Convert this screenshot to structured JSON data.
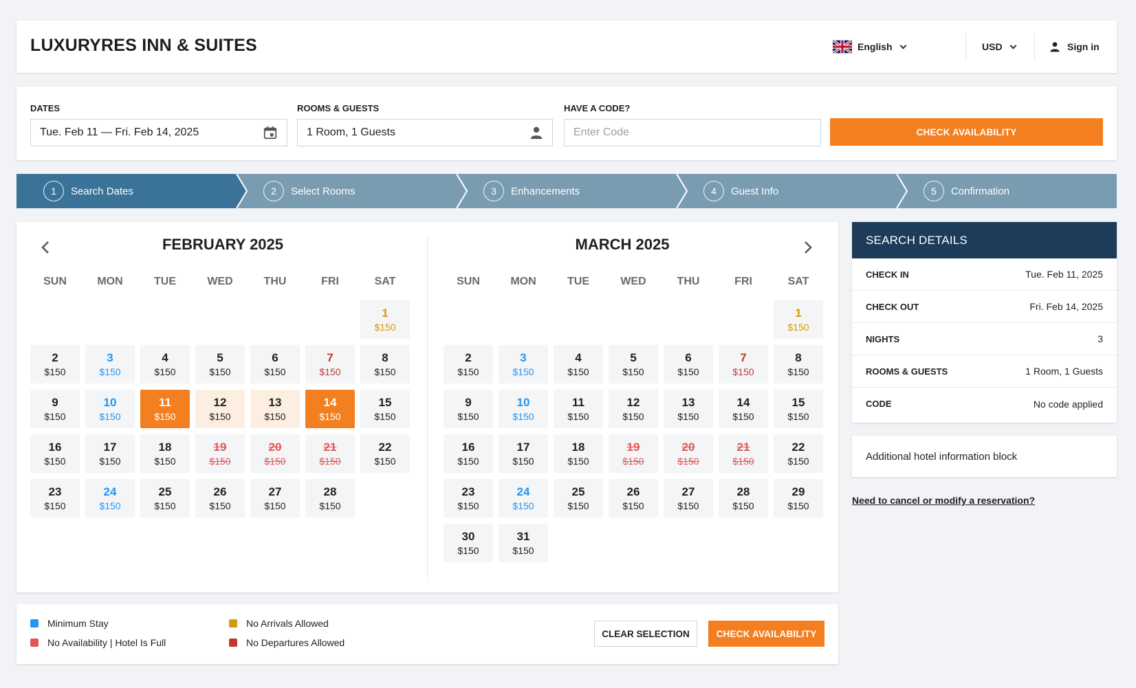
{
  "header": {
    "brand": "LUXURYRES INN & SUITES",
    "language": "English",
    "currency": "USD",
    "sign_in": "Sign in"
  },
  "search": {
    "dates_label": "DATES",
    "dates_value": "Tue. Feb 11 — Fri. Feb 14, 2025",
    "rooms_label": "ROOMS & GUESTS",
    "rooms_value": "1 Room, 1 Guests",
    "code_label": "HAVE A CODE?",
    "code_placeholder": "Enter Code",
    "check_button": "CHECK AVAILABILITY"
  },
  "steps": [
    {
      "num": "1",
      "label": "Search Dates",
      "active": true
    },
    {
      "num": "2",
      "label": "Select Rooms",
      "active": false
    },
    {
      "num": "3",
      "label": "Enhancements",
      "active": false
    },
    {
      "num": "4",
      "label": "Guest Info",
      "active": false
    },
    {
      "num": "5",
      "label": "Confirmation",
      "active": false
    }
  ],
  "calendar": {
    "weekdays": [
      "SUN",
      "MON",
      "TUE",
      "WED",
      "THU",
      "FRI",
      "SAT"
    ],
    "months": [
      {
        "title": "FEBRUARY 2025",
        "first_weekday": 6,
        "days": [
          {
            "d": "1",
            "p": "$150",
            "s": "noarr"
          },
          {
            "d": "2",
            "p": "$150",
            "s": ""
          },
          {
            "d": "3",
            "p": "$150",
            "s": "min"
          },
          {
            "d": "4",
            "p": "$150",
            "s": ""
          },
          {
            "d": "5",
            "p": "$150",
            "s": ""
          },
          {
            "d": "6",
            "p": "$150",
            "s": ""
          },
          {
            "d": "7",
            "p": "$150",
            "s": "nodep"
          },
          {
            "d": "8",
            "p": "$150",
            "s": ""
          },
          {
            "d": "9",
            "p": "$150",
            "s": ""
          },
          {
            "d": "10",
            "p": "$150",
            "s": "min"
          },
          {
            "d": "11",
            "p": "$150",
            "s": "sel"
          },
          {
            "d": "12",
            "p": "$150",
            "s": "range"
          },
          {
            "d": "13",
            "p": "$150",
            "s": "range"
          },
          {
            "d": "14",
            "p": "$150",
            "s": "sel"
          },
          {
            "d": "15",
            "p": "$150",
            "s": ""
          },
          {
            "d": "16",
            "p": "$150",
            "s": ""
          },
          {
            "d": "17",
            "p": "$150",
            "s": ""
          },
          {
            "d": "18",
            "p": "$150",
            "s": ""
          },
          {
            "d": "19",
            "p": "$150",
            "s": "full"
          },
          {
            "d": "20",
            "p": "$150",
            "s": "full"
          },
          {
            "d": "21",
            "p": "$150",
            "s": "full"
          },
          {
            "d": "22",
            "p": "$150",
            "s": ""
          },
          {
            "d": "23",
            "p": "$150",
            "s": ""
          },
          {
            "d": "24",
            "p": "$150",
            "s": "min"
          },
          {
            "d": "25",
            "p": "$150",
            "s": ""
          },
          {
            "d": "26",
            "p": "$150",
            "s": ""
          },
          {
            "d": "27",
            "p": "$150",
            "s": ""
          },
          {
            "d": "28",
            "p": "$150",
            "s": ""
          }
        ]
      },
      {
        "title": "MARCH 2025",
        "first_weekday": 6,
        "days": [
          {
            "d": "1",
            "p": "$150",
            "s": "noarr"
          },
          {
            "d": "2",
            "p": "$150",
            "s": ""
          },
          {
            "d": "3",
            "p": "$150",
            "s": "min"
          },
          {
            "d": "4",
            "p": "$150",
            "s": ""
          },
          {
            "d": "5",
            "p": "$150",
            "s": ""
          },
          {
            "d": "6",
            "p": "$150",
            "s": ""
          },
          {
            "d": "7",
            "p": "$150",
            "s": "nodep"
          },
          {
            "d": "8",
            "p": "$150",
            "s": ""
          },
          {
            "d": "9",
            "p": "$150",
            "s": ""
          },
          {
            "d": "10",
            "p": "$150",
            "s": "min"
          },
          {
            "d": "11",
            "p": "$150",
            "s": ""
          },
          {
            "d": "12",
            "p": "$150",
            "s": ""
          },
          {
            "d": "13",
            "p": "$150",
            "s": ""
          },
          {
            "d": "14",
            "p": "$150",
            "s": ""
          },
          {
            "d": "15",
            "p": "$150",
            "s": ""
          },
          {
            "d": "16",
            "p": "$150",
            "s": ""
          },
          {
            "d": "17",
            "p": "$150",
            "s": ""
          },
          {
            "d": "18",
            "p": "$150",
            "s": ""
          },
          {
            "d": "19",
            "p": "$150",
            "s": "full"
          },
          {
            "d": "20",
            "p": "$150",
            "s": "full"
          },
          {
            "d": "21",
            "p": "$150",
            "s": "full"
          },
          {
            "d": "22",
            "p": "$150",
            "s": ""
          },
          {
            "d": "23",
            "p": "$150",
            "s": ""
          },
          {
            "d": "24",
            "p": "$150",
            "s": "min"
          },
          {
            "d": "25",
            "p": "$150",
            "s": ""
          },
          {
            "d": "26",
            "p": "$150",
            "s": ""
          },
          {
            "d": "27",
            "p": "$150",
            "s": ""
          },
          {
            "d": "28",
            "p": "$150",
            "s": ""
          },
          {
            "d": "29",
            "p": "$150",
            "s": ""
          },
          {
            "d": "30",
            "p": "$150",
            "s": ""
          },
          {
            "d": "31",
            "p": "$150",
            "s": ""
          }
        ]
      }
    ]
  },
  "details": {
    "title": "SEARCH DETAILS",
    "rows": [
      {
        "k": "CHECK IN",
        "v": "Tue. Feb 11, 2025"
      },
      {
        "k": "CHECK OUT",
        "v": "Fri. Feb 14, 2025"
      },
      {
        "k": "NIGHTS",
        "v": "3"
      },
      {
        "k": "ROOMS & GUESTS",
        "v": "1 Room, 1 Guests"
      },
      {
        "k": "CODE",
        "v": "No code applied"
      }
    ]
  },
  "info_block": "Additional hotel information block",
  "cancel_link": "Need to cancel or modify a reservation?",
  "legend": {
    "items": [
      {
        "label": "Minimum Stay",
        "color": "#2196f3"
      },
      {
        "label": "No Availability | Hotel Is Full",
        "color": "#e05656"
      },
      {
        "label": "No Arrivals Allowed",
        "color": "#d49a0d"
      },
      {
        "label": "No Departures Allowed",
        "color": "#c0392b"
      }
    ],
    "clear_button": "CLEAR SELECTION",
    "check_button": "CHECK AVAILABILITY"
  },
  "colors": {
    "accent": "#f47f20",
    "step_active": "#3b7398",
    "step_inactive": "#7a9cb1",
    "details_header": "#1c3c5a"
  },
  "icons": {
    "calendar": "calendar-icon",
    "person": "person-icon",
    "flag": "uk-flag-icon",
    "prev": "chevron-left-icon",
    "next": "chevron-right-icon"
  }
}
